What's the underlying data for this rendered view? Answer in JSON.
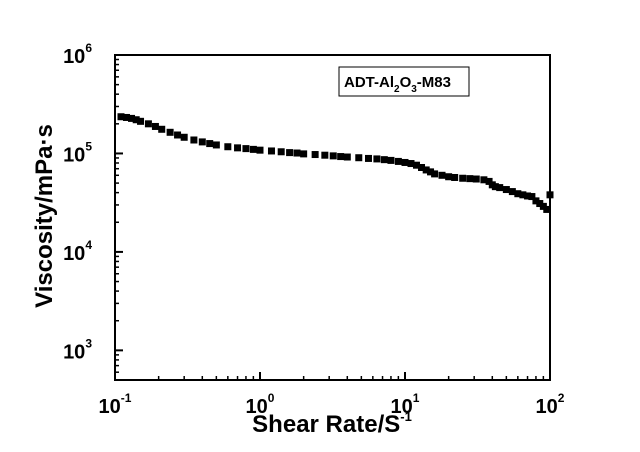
{
  "chart_data": {
    "type": "scatter",
    "xlabel": "Shear Rate/S",
    "xlabel_sup": "-1",
    "ylabel": "Viscosity/mPa·s",
    "x_scale": "log",
    "y_scale": "log",
    "xlim": [
      0.1,
      100
    ],
    "ylim": [
      500,
      1000000
    ],
    "x_ticks": [
      {
        "base": "10",
        "exp": "-1",
        "value": 0.1
      },
      {
        "base": "10",
        "exp": "0",
        "value": 1
      },
      {
        "base": "10",
        "exp": "1",
        "value": 10
      },
      {
        "base": "10",
        "exp": "2",
        "value": 100
      }
    ],
    "y_ticks": [
      {
        "base": "10",
        "exp": "3",
        "value": 1000
      },
      {
        "base": "10",
        "exp": "4",
        "value": 10000
      },
      {
        "base": "10",
        "exp": "5",
        "value": 100000
      },
      {
        "base": "10",
        "exp": "6",
        "value": 1000000
      }
    ],
    "grid": false,
    "legend_position": "top-right",
    "legend": {
      "p1": "ADT-Al",
      "s1": "2",
      "p2": "O",
      "s2": "3",
      "p3": "-M83"
    },
    "marker": "square",
    "series": [
      {
        "x": [
          0.11,
          0.12,
          0.13,
          0.14,
          0.15,
          0.17,
          0.19,
          0.21,
          0.24,
          0.27,
          0.3,
          0.35,
          0.4,
          0.45,
          0.5,
          0.6,
          0.7,
          0.8,
          0.9,
          1.0,
          1.2,
          1.4,
          1.6,
          1.8,
          2.0,
          2.4,
          2.8,
          3.2,
          3.6,
          4.0,
          4.8,
          5.6,
          6.4,
          7.2,
          8.0,
          9.0,
          10.0,
          11.0,
          12.0,
          13.0,
          14.0,
          15.0,
          16.0,
          18.0,
          20.0,
          22.0,
          25.0,
          28.0,
          31.0,
          35.0,
          38.0,
          40.0,
          42.0,
          45.0,
          50.0,
          55.0,
          60.0,
          65.0,
          70.0,
          75.0,
          80.0,
          85.0,
          90.0,
          95.0,
          100.0
        ],
        "y": [
          236000,
          232000,
          227000,
          220000,
          212000,
          200000,
          188000,
          176000,
          164000,
          154000,
          146000,
          137000,
          131000,
          126000,
          122000,
          117000,
          114000,
          112000,
          110000,
          108000,
          106000,
          104000,
          102000,
          101000,
          99000,
          97500,
          96000,
          94500,
          93000,
          92000,
          90500,
          89000,
          88000,
          86500,
          85000,
          83000,
          81000,
          79000,
          76000,
          72000,
          68000,
          65000,
          62000,
          60000,
          58000,
          57000,
          56000,
          55500,
          55000,
          54000,
          52000,
          48000,
          46000,
          45000,
          43000,
          41000,
          39000,
          38000,
          37000,
          36500,
          33000,
          31000,
          29000,
          27000,
          38000
        ]
      }
    ]
  }
}
